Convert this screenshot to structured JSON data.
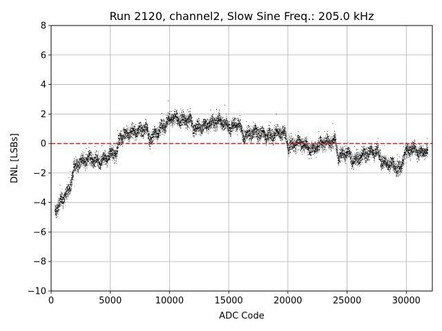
{
  "chart_data": {
    "type": "scatter",
    "title": "Run 2120, channel2, Slow Sine Freq.: 205.0 kHz",
    "xlabel": "ADC Code",
    "ylabel": "DNL [LSBs]",
    "xlim": [
      0,
      32200
    ],
    "ylim": [
      -10,
      8
    ],
    "xticks": [
      0,
      5000,
      10000,
      15000,
      20000,
      25000,
      30000
    ],
    "xtick_labels": [
      "0",
      "5000",
      "10000",
      "15000",
      "20000",
      "25000",
      "30000"
    ],
    "yticks": [
      -10,
      -8,
      -6,
      -4,
      -2,
      0,
      2,
      4,
      6,
      8
    ],
    "ytick_labels": [
      "−10",
      "−8",
      "−6",
      "−4",
      "−2",
      "0",
      "2",
      "4",
      "6",
      "8"
    ],
    "grid": true,
    "reference_line": {
      "y": 0,
      "color": "#d62728",
      "style": "dashed"
    },
    "series": [
      {
        "color": "#000000",
        "marker": "dot",
        "x_range": [
          300,
          31800
        ],
        "trend": [
          [
            300,
            -4.6
          ],
          [
            600,
            -4.2
          ],
          [
            900,
            -3.8
          ],
          [
            1200,
            -3.4
          ],
          [
            1500,
            -3.2
          ],
          [
            1700,
            -2.4
          ],
          [
            1900,
            -1.7
          ],
          [
            2200,
            -1.4
          ],
          [
            2700,
            -1.2
          ],
          [
            3200,
            -1.0
          ],
          [
            3600,
            -1.1
          ],
          [
            4200,
            -1.2
          ],
          [
            4700,
            -0.9
          ],
          [
            5200,
            -0.6
          ],
          [
            5500,
            -0.7
          ],
          [
            5800,
            0.5
          ],
          [
            6500,
            0.7
          ],
          [
            7000,
            0.8
          ],
          [
            7500,
            0.9
          ],
          [
            8000,
            1.1
          ],
          [
            8300,
            0.3
          ],
          [
            8800,
            0.7
          ],
          [
            9500,
            1.2
          ],
          [
            10200,
            1.8
          ],
          [
            11000,
            1.6
          ],
          [
            11800,
            1.6
          ],
          [
            12000,
            1.0
          ],
          [
            12800,
            1.2
          ],
          [
            13500,
            1.4
          ],
          [
            14300,
            1.6
          ],
          [
            15000,
            1.1
          ],
          [
            15800,
            1.4
          ],
          [
            16200,
            0.5
          ],
          [
            17000,
            0.8
          ],
          [
            17800,
            0.7
          ],
          [
            18500,
            0.5
          ],
          [
            19200,
            0.8
          ],
          [
            19800,
            0.6
          ],
          [
            20000,
            -0.2
          ],
          [
            21000,
            0.1
          ],
          [
            22000,
            -0.4
          ],
          [
            23000,
            0.1
          ],
          [
            24000,
            0.2
          ],
          [
            24200,
            -0.8
          ],
          [
            25000,
            -0.6
          ],
          [
            25500,
            -1.2
          ],
          [
            26000,
            -0.9
          ],
          [
            26800,
            -0.6
          ],
          [
            27500,
            -0.5
          ],
          [
            28000,
            -1.3
          ],
          [
            28800,
            -1.4
          ],
          [
            29500,
            -1.8
          ],
          [
            29800,
            -0.7
          ],
          [
            30500,
            -0.3
          ],
          [
            31200,
            -0.6
          ],
          [
            31800,
            -0.4
          ]
        ],
        "noise_amplitude": 0.35,
        "point_count": 9000
      }
    ]
  }
}
